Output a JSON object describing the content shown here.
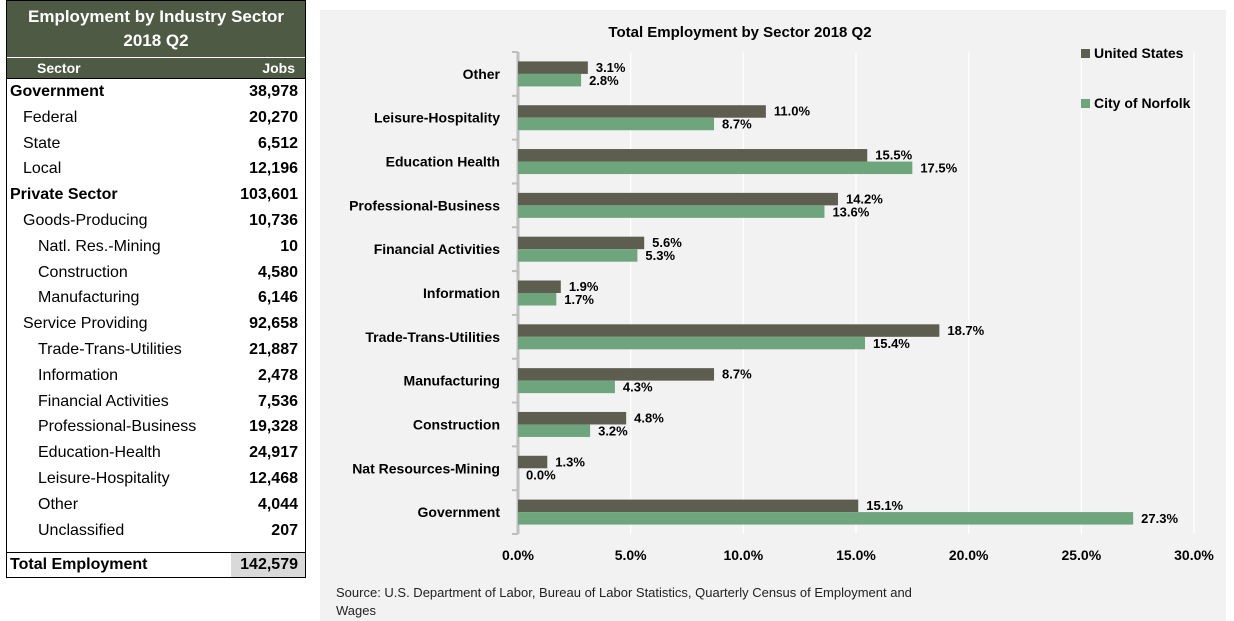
{
  "table": {
    "title_line1": "Employment by Industry Sector",
    "title_line2": "2018 Q2",
    "col_sector": "Sector",
    "col_jobs": "Jobs",
    "rows": [
      {
        "label": "Government",
        "value": "38,978",
        "level": 0
      },
      {
        "label": "Federal",
        "value": "20,270",
        "level": 1
      },
      {
        "label": "State",
        "value": "6,512",
        "level": 1
      },
      {
        "label": "Local",
        "value": "12,196",
        "level": 1
      },
      {
        "label": "Private Sector",
        "value": "103,601",
        "level": 0
      },
      {
        "label": "Goods-Producing",
        "value": "10,736",
        "level": 1
      },
      {
        "label": "Natl. Res.-Mining",
        "value": "10",
        "level": 2
      },
      {
        "label": "Construction",
        "value": "4,580",
        "level": 2
      },
      {
        "label": "Manufacturing",
        "value": "6,146",
        "level": 2
      },
      {
        "label": "Service Providing",
        "value": "92,658",
        "level": 1
      },
      {
        "label": "Trade-Trans-Utilities",
        "value": "21,887",
        "level": 2
      },
      {
        "label": "Information",
        "value": "2,478",
        "level": 2
      },
      {
        "label": "Financial Activities",
        "value": "7,536",
        "level": 2
      },
      {
        "label": "Professional-Business",
        "value": "19,328",
        "level": 2
      },
      {
        "label": "Education-Health",
        "value": "24,917",
        "level": 2
      },
      {
        "label": "Leisure-Hospitality",
        "value": "12,468",
        "level": 2
      },
      {
        "label": "Other",
        "value": "4,044",
        "level": 2
      },
      {
        "label": "Unclassified",
        "value": "207",
        "level": 2
      }
    ],
    "total_label": "Total Employment",
    "total_value": "142,579"
  },
  "source": "Source: U.S. Department of Labor, Bureau of Labor Statistics, Quarterly Census of Employment and Wages",
  "colors": {
    "header_bg": "#4e5a44",
    "us_bar": "#5e5e50",
    "norfolk_bar": "#6fa57c",
    "panel_bg": "#f2f2f2",
    "total_value_bg": "#d9d9d9"
  },
  "chart_data": {
    "type": "bar",
    "orientation": "horizontal",
    "title": "Total Employment by Sector  2018 Q2",
    "categories": [
      "Other",
      "Leisure-Hospitality",
      "Education Health",
      "Professional-Business",
      "Financial Activities",
      "Information",
      "Trade-Trans-Utilities",
      "Manufacturing",
      "Construction",
      "Nat Resources-Mining",
      "Government"
    ],
    "series": [
      {
        "name": "United States",
        "values": [
          3.1,
          11.0,
          15.5,
          14.2,
          5.6,
          1.9,
          18.7,
          8.7,
          4.8,
          1.3,
          15.1
        ]
      },
      {
        "name": "City of Norfolk",
        "values": [
          2.8,
          8.7,
          17.5,
          13.6,
          5.3,
          1.7,
          15.4,
          4.3,
          3.2,
          0.0,
          27.3
        ]
      }
    ],
    "xlim": [
      0,
      30
    ],
    "xticks": [
      0,
      5,
      10,
      15,
      20,
      25,
      30
    ],
    "xtick_labels": [
      "0.0%",
      "5.0%",
      "10.0%",
      "15.0%",
      "20.0%",
      "25.0%",
      "30.0%"
    ],
    "value_format": "percent_1dp",
    "legend_position": "top-right",
    "grid": true
  }
}
